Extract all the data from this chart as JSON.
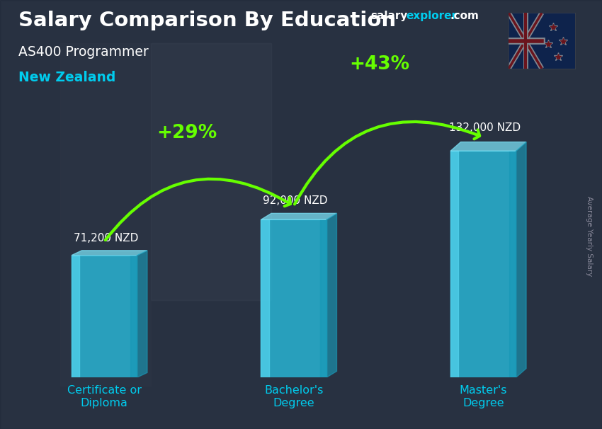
{
  "title_main": "Salary Comparison By Education",
  "subtitle1": "AS400 Programmer",
  "subtitle2": "New Zealand",
  "categories": [
    "Certificate or\nDiploma",
    "Bachelor's\nDegree",
    "Master's\nDegree"
  ],
  "values": [
    71200,
    92000,
    132000
  ],
  "value_labels": [
    "71,200 NZD",
    "92,000 NZD",
    "132,000 NZD"
  ],
  "pct_labels": [
    "+29%",
    "+43%"
  ],
  "bar_main_color": "#29b8d8",
  "bar_left_color": "#55d4ef",
  "bar_right_color": "#1a9ab8",
  "bar_top_color": "#7ae0f5",
  "bg_overlay_color": "#1a2535",
  "bg_overlay_alpha": 0.55,
  "title_color": "#ffffff",
  "subtitle1_color": "#ffffff",
  "subtitle2_color": "#00ccee",
  "value_label_color": "#ffffff",
  "pct_color": "#66ff00",
  "xtick_color": "#00ccee",
  "ylabel_text": "Average Yearly Salary",
  "brand_salary_color": "#ffffff",
  "brand_explorer_color": "#00ccee",
  "brand_com_color": "#ffffff",
  "ylim": [
    0,
    175000
  ],
  "bar_width": 0.38,
  "x_positions": [
    1.0,
    2.1,
    3.2
  ],
  "fig_width": 8.5,
  "fig_height": 6.06
}
